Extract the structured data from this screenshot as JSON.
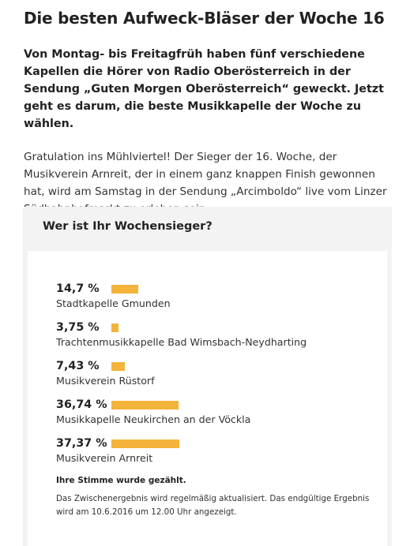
{
  "article": {
    "title": "Die besten Aufweck-Bläser der Woche 16",
    "lead": "Von Montag- bis Freitagfrüh haben fünf verschiedene Kapellen die Hörer von Radio Oberösterreich in der Sendung „Guten Morgen Oberösterreich“ geweckt. Jetzt geht es darum, die beste Musikkapelle der Woche zu wählen.",
    "body": "Gratulation ins Mühlviertel! Der Sieger der 16. Woche, der Musikverein Arnreit, der in einem ganz knappen Finish gewonnen hat, wird am Samstag in der Sendung „Arcimboldo“ live vom Linzer Südbahnhofmarkt zu erleben sein."
  },
  "poll": {
    "heading": "Wer ist Ihr Wochensieger?",
    "bar_color": "#f4b33a",
    "results": [
      {
        "percent_label": "14,7 %",
        "percent": 14.7,
        "name": "Stadtkapelle Gmunden"
      },
      {
        "percent_label": "3,75 %",
        "percent": 3.75,
        "name": "Trachtenmusikkapelle Bad Wimsbach-Neydharting"
      },
      {
        "percent_label": "7,43 %",
        "percent": 7.43,
        "name": "Musikverein Rüstorf"
      },
      {
        "percent_label": "36,74 %",
        "percent": 36.74,
        "name": "Musikkapelle Neukirchen an der Vöckla"
      },
      {
        "percent_label": "37,37 %",
        "percent": 37.37,
        "name": "Musikverein Arnreit"
      }
    ],
    "vote_note": "Ihre Stimme wurde gezählt.",
    "interim_note": "Das Zwischenergebnis wird regelmäßig aktualisiert. Das endgültige Ergebnis wird am 10.6.2016 um 12.00 Uhr angezeigt."
  }
}
